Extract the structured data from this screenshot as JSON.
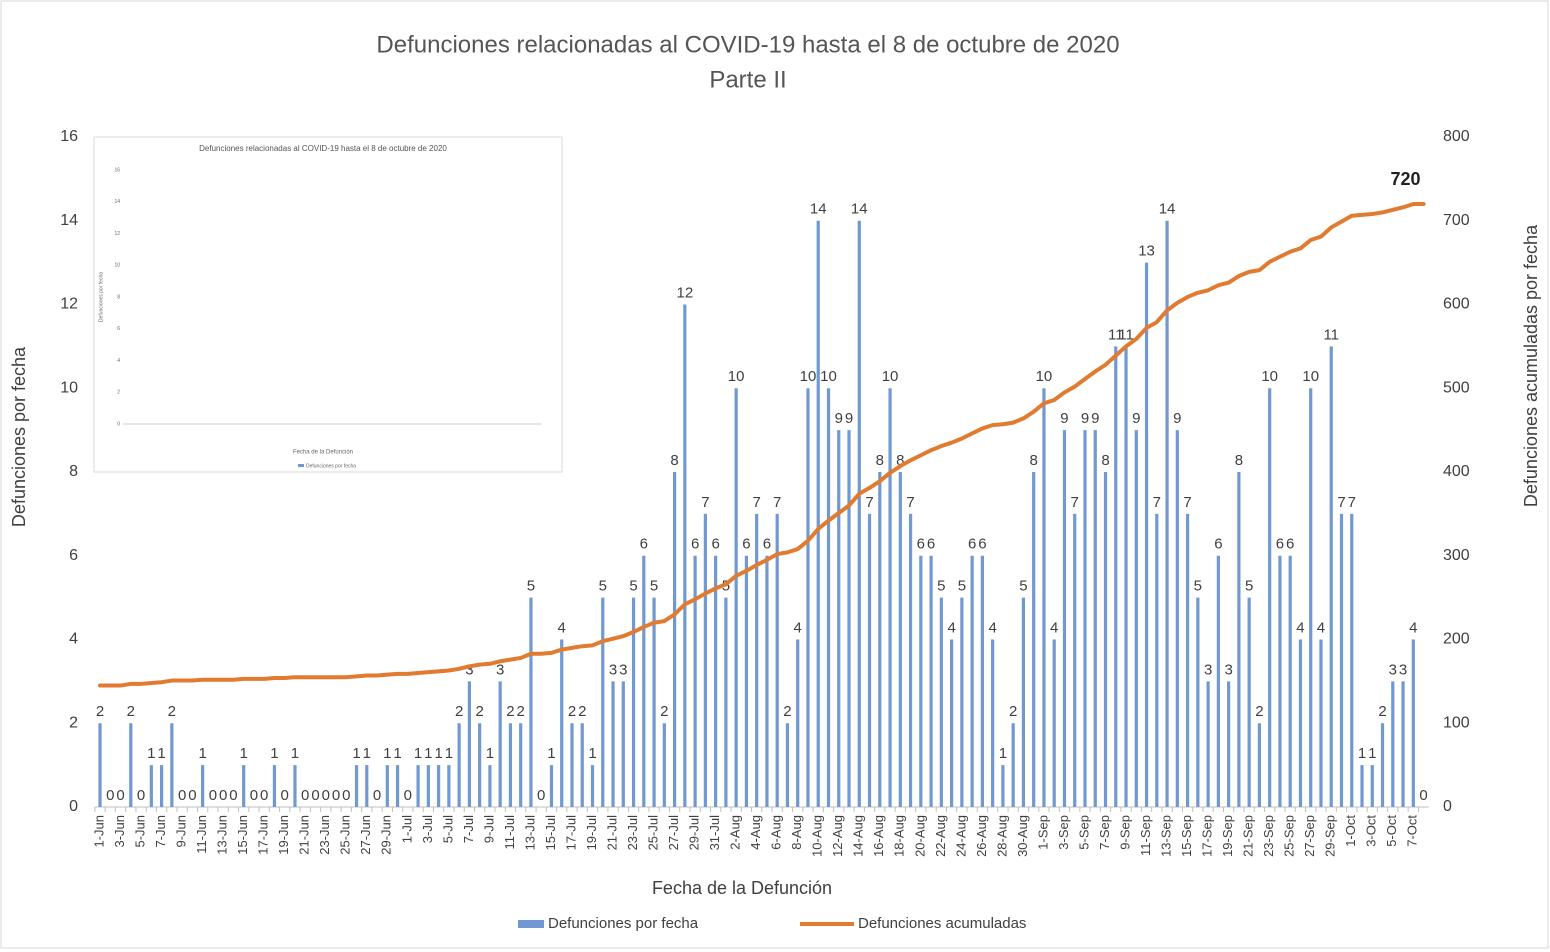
{
  "chart_data": {
    "type": "bar_line",
    "title": "Defunciones relacionadas al COVID-19 hasta el 8 de octubre de 2020",
    "subtitle": "Parte II",
    "x_label": "Fecha de la Defunción",
    "y_label": "Defunciones por fecha",
    "y2_label": "Defunciones acumuladas por fecha",
    "categories": [
      "1-Jun",
      null,
      "3-Jun",
      null,
      "5-Jun",
      null,
      "7-Jun",
      null,
      "9-Jun",
      null,
      "11-Jun",
      null,
      "13-Jun",
      null,
      "15-Jun",
      null,
      "17-Jun",
      null,
      "19-Jun",
      null,
      "21-Jun",
      null,
      "23-Jun",
      null,
      "25-Jun",
      null,
      "27-Jun",
      null,
      "29-Jun",
      null,
      "1-Jul",
      null,
      "3-Jul",
      null,
      "5-Jul",
      null,
      "7-Jul",
      null,
      "9-Jul",
      null,
      "11-Jul",
      null,
      "13-Jul",
      null,
      "15-Jul",
      null,
      "17-Jul",
      null,
      "19-Jul",
      null,
      "21-Jul",
      null,
      "23-Jul",
      null,
      "25-Jul",
      null,
      "27-Jul",
      null,
      "29-Jul",
      null,
      "31-Jul",
      null,
      "2-Aug",
      null,
      "4-Aug",
      null,
      "6-Aug",
      null,
      "8-Aug",
      null,
      "10-Aug",
      null,
      "12-Aug",
      null,
      "14-Aug",
      null,
      "16-Aug",
      null,
      "18-Aug",
      null,
      "20-Aug",
      null,
      "22-Aug",
      null,
      "24-Aug",
      null,
      "26-Aug",
      null,
      "28-Aug",
      null,
      "30-Aug",
      null,
      "1-Sep",
      null,
      "3-Sep",
      null,
      "5-Sep",
      null,
      "7-Sep",
      null,
      "9-Sep",
      null,
      "11-Sep",
      null,
      "13-Sep",
      null,
      "15-Sep",
      null,
      "17-Sep",
      null,
      "19-Sep",
      null,
      "21-Sep",
      null,
      "23-Sep",
      null,
      "25-Sep",
      null,
      "27-Sep",
      null,
      "29-Sep",
      null,
      "1-Oct",
      null,
      "3-Oct",
      null,
      "5-Oct",
      null,
      "7-Oct",
      null
    ],
    "series": [
      {
        "name": "Defunciones por fecha",
        "type": "bar",
        "color": "#7198d0",
        "data_labels": "all",
        "values": [
          2,
          0,
          0,
          2,
          0,
          1,
          1,
          2,
          0,
          0,
          1,
          0,
          0,
          0,
          1,
          0,
          0,
          1,
          0,
          1,
          0,
          0,
          0,
          0,
          0,
          1,
          1,
          0,
          1,
          1,
          0,
          1,
          1,
          1,
          1,
          2,
          3,
          2,
          1,
          3,
          2,
          2,
          5,
          0,
          1,
          4,
          2,
          2,
          1,
          5,
          3,
          3,
          5,
          6,
          5,
          2,
          8,
          12,
          6,
          7,
          6,
          5,
          10,
          6,
          7,
          6,
          7,
          2,
          4,
          10,
          14,
          10,
          9,
          9,
          14,
          7,
          8,
          10,
          8,
          7,
          6,
          6,
          5,
          4,
          5,
          6,
          6,
          4,
          1,
          2,
          5,
          8,
          10,
          4,
          9,
          7,
          9,
          9,
          8,
          11,
          11,
          9,
          13,
          7,
          14,
          9,
          7,
          5,
          3,
          6,
          3,
          8,
          5,
          2,
          10,
          6,
          6,
          4,
          10,
          4,
          11,
          7,
          7,
          1,
          1,
          2,
          3,
          3,
          4,
          0
        ]
      },
      {
        "name": "Defunciones acumuladas",
        "type": "line",
        "axis": "y2",
        "color": "#e07b30",
        "data_labels": "last",
        "values": [
          145,
          145,
          145,
          147,
          147,
          148,
          149,
          151,
          151,
          151,
          152,
          152,
          152,
          152,
          153,
          153,
          153,
          154,
          154,
          155,
          155,
          155,
          155,
          155,
          155,
          156,
          157,
          157,
          158,
          159,
          159,
          160,
          161,
          162,
          163,
          165,
          168,
          170,
          171,
          174,
          176,
          178,
          183,
          183,
          184,
          188,
          190,
          192,
          193,
          198,
          201,
          204,
          209,
          215,
          220,
          222,
          230,
          242,
          248,
          255,
          261,
          266,
          276,
          282,
          289,
          295,
          302,
          304,
          308,
          318,
          332,
          342,
          351,
          360,
          374,
          381,
          389,
          399,
          407,
          414,
          420,
          426,
          431,
          435,
          440,
          446,
          452,
          456,
          457,
          459,
          464,
          472,
          482,
          486,
          495,
          502,
          511,
          520,
          528,
          539,
          550,
          559,
          572,
          579,
          593,
          602,
          609,
          614,
          617,
          623,
          626,
          634,
          639,
          641,
          651,
          657,
          663,
          667,
          677,
          681,
          692,
          699,
          706,
          707,
          708,
          710,
          713,
          716,
          720,
          720
        ]
      }
    ],
    "ylim": [
      0,
      16
    ],
    "yticks": [
      0,
      2,
      4,
      6,
      8,
      10,
      12,
      14,
      16
    ],
    "y2lim": [
      0,
      800
    ],
    "y2ticks": [
      0,
      100,
      200,
      300,
      400,
      500,
      600,
      700,
      800
    ],
    "legend": "bottom",
    "inset": {
      "title": "Defunciones relacionadas al COVID-19 hasta el 8 de octubre de 2020",
      "x_label": "Fecha de la Defunción",
      "y_label": "Defunciones por fecha",
      "legend": "Defunciones por fecha",
      "ylim": [
        0,
        16
      ],
      "yticks": [
        0,
        2,
        4,
        6,
        8,
        10,
        12,
        14,
        16
      ]
    }
  }
}
